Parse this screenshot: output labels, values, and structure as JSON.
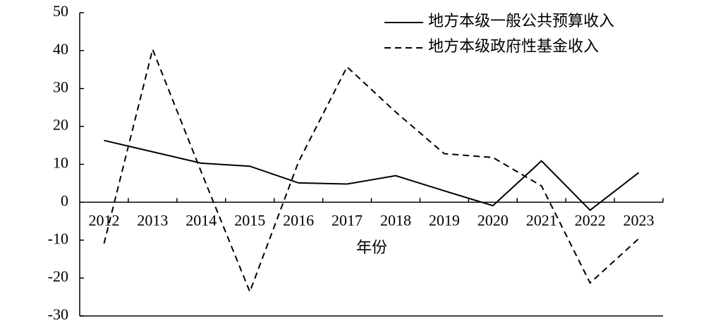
{
  "chart_data": {
    "type": "line",
    "x_label": "年份",
    "categories": [
      "2012",
      "2013",
      "2014",
      "2015",
      "2016",
      "2017",
      "2018",
      "2019",
      "2020",
      "2021",
      "2022",
      "2023"
    ],
    "series": [
      {
        "name": "地方本级一般公共预算收入",
        "color": "#000000",
        "dash": "solid",
        "values": [
          16.3,
          13.3,
          10.3,
          9.5,
          5.1,
          4.8,
          7.0,
          3.0,
          -0.9,
          10.9,
          -2.1,
          7.8
        ]
      },
      {
        "name": "地方本级政府性基金收入",
        "color": "#000000",
        "dash": "dashed",
        "values": [
          -10.9,
          40.3,
          8,
          -23.6,
          10.6,
          35.7,
          23.8,
          12.8,
          11.8,
          4.3,
          -21.3,
          -9.6
        ]
      }
    ],
    "ylim": [
      -30,
      50
    ],
    "yticks": [
      -30,
      -20,
      -10,
      0,
      10,
      20,
      30,
      40,
      50
    ],
    "grid": false,
    "legend": "top-right"
  }
}
